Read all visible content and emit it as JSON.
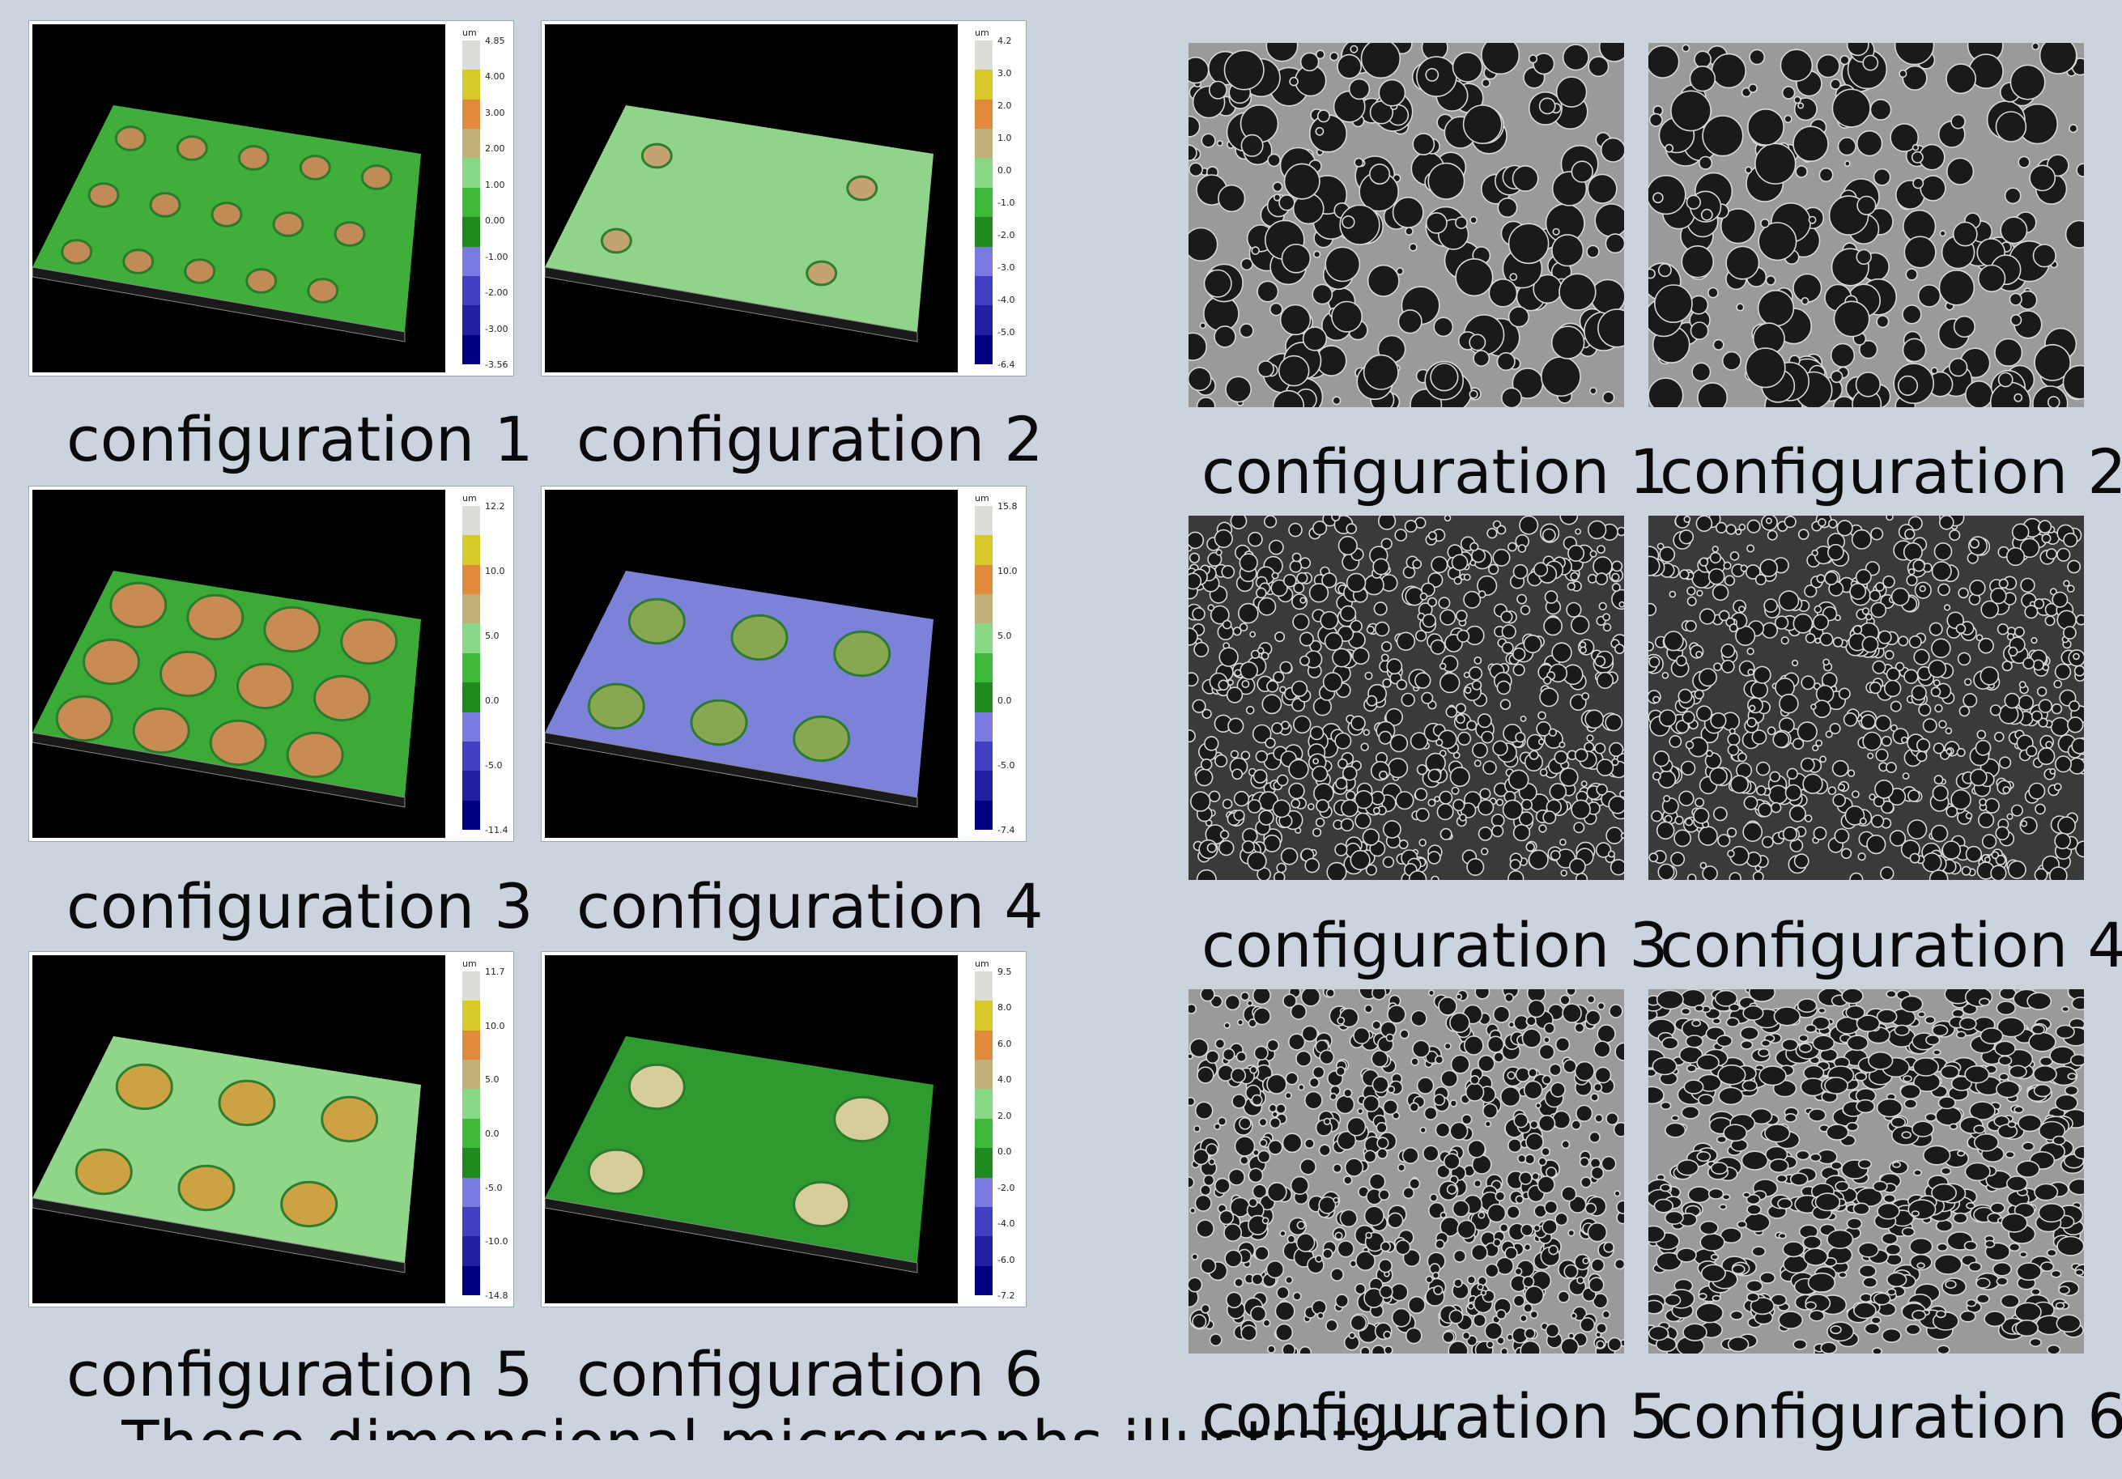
{
  "left": {
    "colorbar_unit": "um",
    "panels": [
      {
        "caption": "configuration 1",
        "ticks": [
          "4.85",
          "4.00",
          "3.00",
          "2.00",
          "1.00",
          "0.00",
          "-1.00",
          "-2.00",
          "-3.00",
          "-3.56"
        ],
        "surface": "#3fae3a",
        "bumps": "#c98a5a"
      },
      {
        "caption": "configuration 2",
        "ticks": [
          "4.2",
          "3.0",
          "2.0",
          "1.0",
          "0.0",
          "-1.0",
          "-2.0",
          "-3.0",
          "-4.0",
          "-5.0",
          "-6.4"
        ],
        "surface": "#8fd48a",
        "bumps": "#c8a070"
      },
      {
        "caption": "configuration 3",
        "ticks": [
          "12.2",
          "10.0",
          "5.0",
          "0.0",
          "-5.0",
          "-11.4"
        ],
        "surface": "#3caa36",
        "bumps": "#d08a55"
      },
      {
        "caption": "configuration 4",
        "ticks": [
          "15.8",
          "10.0",
          "5.0",
          "0.0",
          "-5.0",
          "-7.4"
        ],
        "surface": "#7b82d8",
        "bumps": "#8aaa4a"
      },
      {
        "caption": "configuration 5",
        "ticks": [
          "11.7",
          "10.0",
          "5.0",
          "0.0",
          "-5.0",
          "-10.0",
          "-14.8"
        ],
        "surface": "#8fd68a",
        "bumps": "#d0a040"
      },
      {
        "caption": "configuration 6",
        "ticks": [
          "9.5",
          "8.0",
          "6.0",
          "4.0",
          "2.0",
          "0.0",
          "-2.0",
          "-4.0",
          "-6.0",
          "-7.2"
        ],
        "surface": "#2f9a2f",
        "bumps": "#e0d0a0"
      }
    ]
  },
  "right": {
    "panels": [
      {
        "caption": "configuration 1"
      },
      {
        "caption": "configuration 2"
      },
      {
        "caption": "configuration 3"
      },
      {
        "caption": "configuration 4"
      },
      {
        "caption": "configuration 5"
      },
      {
        "caption": "configuration 6"
      }
    ]
  },
  "colorbar_colors": [
    "#ddddd8",
    "#d8c82a",
    "#e08a3e",
    "#c0b078",
    "#88d888",
    "#3fb83c",
    "#1f8a1f",
    "#7a7ae0",
    "#4040c0",
    "#2020a0",
    "#000080"
  ],
  "bottom_text": "These dimensional micrographs illustrating"
}
